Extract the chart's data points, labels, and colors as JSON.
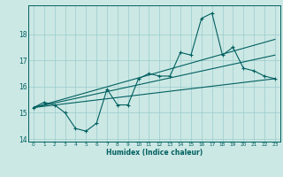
{
  "xlabel": "Humidex (Indice chaleur)",
  "x_values": [
    0,
    1,
    2,
    3,
    4,
    5,
    6,
    7,
    8,
    9,
    10,
    11,
    12,
    13,
    14,
    15,
    16,
    17,
    18,
    19,
    20,
    21,
    22,
    23
  ],
  "y_main": [
    15.2,
    15.4,
    15.3,
    15.0,
    14.4,
    14.3,
    14.6,
    15.9,
    15.3,
    15.3,
    16.3,
    16.5,
    16.4,
    16.4,
    17.3,
    17.2,
    18.6,
    18.8,
    17.2,
    17.5,
    16.7,
    16.6,
    16.4,
    16.3
  ],
  "trend1_start": 15.2,
  "trend1_end": 16.3,
  "trend2_start": 15.2,
  "trend2_end": 17.2,
  "trend3_start": 15.2,
  "trend3_end": 17.8,
  "bg_color": "#cce8e4",
  "grid_color": "#99cccc",
  "line_color": "#006060",
  "ylim": [
    13.9,
    19.1
  ],
  "xlim": [
    -0.5,
    23.5
  ],
  "yticks": [
    14,
    15,
    16,
    17,
    18
  ],
  "xticks": [
    0,
    1,
    2,
    3,
    4,
    5,
    6,
    7,
    8,
    9,
    10,
    11,
    12,
    13,
    14,
    15,
    16,
    17,
    18,
    19,
    20,
    21,
    22,
    23
  ]
}
